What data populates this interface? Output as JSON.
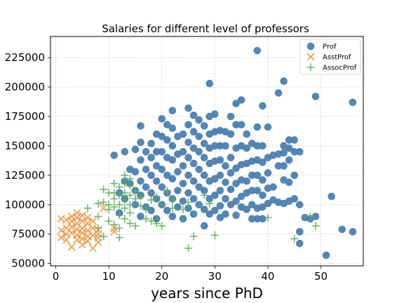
{
  "chart_data": {
    "type": "scatter",
    "title": "Salaries for different level of professors",
    "xlabel": "years since PhD",
    "ylabel": "",
    "xlim": [
      -1,
      58
    ],
    "ylim": [
      48000,
      243000
    ],
    "xticks": [
      0,
      10,
      20,
      30,
      40,
      50
    ],
    "yticks": [
      50000,
      75000,
      100000,
      125000,
      150000,
      175000,
      200000,
      225000
    ],
    "grid": true,
    "legend_position": "top-right",
    "series": [
      {
        "name": "Prof",
        "marker": "circle",
        "color": "#4a7fb0",
        "points": [
          [
            11,
            142000
          ],
          [
            12,
            93000
          ],
          [
            12,
            110000
          ],
          [
            13,
            145000
          ],
          [
            13,
            120000
          ],
          [
            13,
            105000
          ],
          [
            14,
            130000
          ],
          [
            14,
            118000
          ],
          [
            15,
            147000
          ],
          [
            15,
            128000
          ],
          [
            15,
            112000
          ],
          [
            15,
            100000
          ],
          [
            16,
            167000
          ],
          [
            16,
            153000
          ],
          [
            16,
            138000
          ],
          [
            16,
            120000
          ],
          [
            16,
            108000
          ],
          [
            16,
            90000
          ],
          [
            17,
            145000
          ],
          [
            17,
            130000
          ],
          [
            17,
            115000
          ],
          [
            17,
            98000
          ],
          [
            18,
            152000
          ],
          [
            18,
            140000
          ],
          [
            18,
            125000
          ],
          [
            18,
            110000
          ],
          [
            18,
            95000
          ],
          [
            19,
            160000
          ],
          [
            19,
            145000
          ],
          [
            19,
            133000
          ],
          [
            19,
            120000
          ],
          [
            19,
            105000
          ],
          [
            19,
            88000
          ],
          [
            20,
            173000
          ],
          [
            20,
            158000
          ],
          [
            20,
            145000
          ],
          [
            20,
            130000
          ],
          [
            20,
            115000
          ],
          [
            20,
            100000
          ],
          [
            21,
            168000
          ],
          [
            21,
            155000
          ],
          [
            21,
            140000
          ],
          [
            21,
            125000
          ],
          [
            21,
            110000
          ],
          [
            21,
            95000
          ],
          [
            22,
            180000
          ],
          [
            22,
            165000
          ],
          [
            22,
            150000
          ],
          [
            22,
            138000
          ],
          [
            22,
            122000
          ],
          [
            22,
            105000
          ],
          [
            22,
            90000
          ],
          [
            23,
            158000
          ],
          [
            23,
            143000
          ],
          [
            23,
            128000
          ],
          [
            23,
            112000
          ],
          [
            23,
            98000
          ],
          [
            24,
            160000
          ],
          [
            24,
            145000
          ],
          [
            24,
            133000
          ],
          [
            24,
            118000
          ],
          [
            24,
            103000
          ],
          [
            24,
            88000
          ],
          [
            25,
            182000
          ],
          [
            25,
            168000
          ],
          [
            25,
            153000
          ],
          [
            25,
            140000
          ],
          [
            25,
            125000
          ],
          [
            25,
            110000
          ],
          [
            25,
            97000
          ],
          [
            26,
            176000
          ],
          [
            26,
            162000
          ],
          [
            26,
            148000
          ],
          [
            26,
            135000
          ],
          [
            26,
            120000
          ],
          [
            26,
            105000
          ],
          [
            26,
            92000
          ],
          [
            27,
            172000
          ],
          [
            27,
            158000
          ],
          [
            27,
            145000
          ],
          [
            27,
            130000
          ],
          [
            27,
            115000
          ],
          [
            27,
            100000
          ],
          [
            28,
            167000
          ],
          [
            28,
            152000
          ],
          [
            28,
            140000
          ],
          [
            28,
            125000
          ],
          [
            28,
            112000
          ],
          [
            28,
            96000
          ],
          [
            28,
            82000
          ],
          [
            29,
            203000
          ],
          [
            29,
            175000
          ],
          [
            29,
            160000
          ],
          [
            29,
            148000
          ],
          [
            29,
            135000
          ],
          [
            29,
            120000
          ],
          [
            29,
            105000
          ],
          [
            29,
            92000
          ],
          [
            30,
            177000
          ],
          [
            30,
            162000
          ],
          [
            30,
            150000
          ],
          [
            30,
            137000
          ],
          [
            30,
            122000
          ],
          [
            30,
            108000
          ],
          [
            30,
            95000
          ],
          [
            31,
            163000
          ],
          [
            31,
            150000
          ],
          [
            31,
            138000
          ],
          [
            31,
            125000
          ],
          [
            31,
            112000
          ],
          [
            31,
            99000
          ],
          [
            31,
            89000
          ],
          [
            32,
            162000
          ],
          [
            32,
            150000
          ],
          [
            32,
            133000
          ],
          [
            32,
            119000
          ],
          [
            32,
            105000
          ],
          [
            32,
            92000
          ],
          [
            33,
            175000
          ],
          [
            33,
            160000
          ],
          [
            33,
            140000
          ],
          [
            33,
            127000
          ],
          [
            33,
            113000
          ],
          [
            33,
            100000
          ],
          [
            34,
            186000
          ],
          [
            34,
            168000
          ],
          [
            34,
            148000
          ],
          [
            34,
            131000
          ],
          [
            34,
            118000
          ],
          [
            34,
            103000
          ],
          [
            34,
            91000
          ],
          [
            35,
            189000
          ],
          [
            35,
            168000
          ],
          [
            35,
            150000
          ],
          [
            35,
            134000
          ],
          [
            35,
            121000
          ],
          [
            35,
            107000
          ],
          [
            35,
            98000
          ],
          [
            36,
            160000
          ],
          [
            36,
            148000
          ],
          [
            36,
            135000
          ],
          [
            36,
            120000
          ],
          [
            36,
            110000
          ],
          [
            36,
            96000
          ],
          [
            37,
            152000
          ],
          [
            37,
            137000
          ],
          [
            37,
            125000
          ],
          [
            37,
            112000
          ],
          [
            37,
            100000
          ],
          [
            37,
            88000
          ],
          [
            38,
            231000
          ],
          [
            38,
            166000
          ],
          [
            38,
            150000
          ],
          [
            38,
            138000
          ],
          [
            38,
            125000
          ],
          [
            38,
            112000
          ],
          [
            38,
            97000
          ],
          [
            38,
            88000
          ],
          [
            39,
            184000
          ],
          [
            39,
            150000
          ],
          [
            39,
            136000
          ],
          [
            39,
            121000
          ],
          [
            39,
            108000
          ],
          [
            39,
            98000
          ],
          [
            39,
            88000
          ],
          [
            40,
            166000
          ],
          [
            40,
            140000
          ],
          [
            40,
            127000
          ],
          [
            40,
            114000
          ],
          [
            40,
            101000
          ],
          [
            41,
            142000
          ],
          [
            41,
            115000
          ],
          [
            41,
            104000
          ],
          [
            42,
            195000
          ],
          [
            42,
            143000
          ],
          [
            42,
            133000
          ],
          [
            42,
            102000
          ],
          [
            43,
            205000
          ],
          [
            43,
            150000
          ],
          [
            43,
            144000
          ],
          [
            43,
            133000
          ],
          [
            43,
            121000
          ],
          [
            43,
            101000
          ],
          [
            44,
            155000
          ],
          [
            44,
            148000
          ],
          [
            44,
            138000
          ],
          [
            44,
            119000
          ],
          [
            44,
            103000
          ],
          [
            45,
            155000
          ],
          [
            45,
            145000
          ],
          [
            45,
            125000
          ],
          [
            45,
            105000
          ],
          [
            46,
            145000
          ],
          [
            46,
            100000
          ],
          [
            46,
            77000
          ],
          [
            46,
            67000
          ],
          [
            47,
            89000
          ],
          [
            48,
            88000
          ],
          [
            49,
            192000
          ],
          [
            49,
            90000
          ],
          [
            51,
            57000
          ],
          [
            52,
            107000
          ],
          [
            54,
            79000
          ],
          [
            56,
            187000
          ],
          [
            56,
            77000
          ]
        ]
      },
      {
        "name": "AsstProf",
        "marker": "x",
        "color": "#f08c30",
        "points": [
          [
            1,
            88000
          ],
          [
            1,
            78000
          ],
          [
            1,
            72000
          ],
          [
            2,
            87000
          ],
          [
            2,
            80000
          ],
          [
            2,
            75000
          ],
          [
            2,
            70000
          ],
          [
            3,
            90000
          ],
          [
            3,
            86000
          ],
          [
            3,
            81000
          ],
          [
            3,
            76000
          ],
          [
            3,
            64000
          ],
          [
            4,
            93000
          ],
          [
            4,
            89000
          ],
          [
            4,
            84000
          ],
          [
            4,
            79000
          ],
          [
            4,
            74000
          ],
          [
            4,
            70000
          ],
          [
            5,
            91000
          ],
          [
            5,
            86000
          ],
          [
            5,
            80000
          ],
          [
            5,
            76000
          ],
          [
            5,
            71000
          ],
          [
            5,
            66000
          ],
          [
            6,
            89000
          ],
          [
            6,
            84000
          ],
          [
            6,
            78000
          ],
          [
            6,
            73000
          ],
          [
            6,
            69000
          ],
          [
            7,
            86000
          ],
          [
            7,
            80000
          ],
          [
            7,
            74000
          ],
          [
            7,
            63000
          ],
          [
            8,
            79000
          ],
          [
            8,
            75000
          ],
          [
            8,
            72000
          ],
          [
            8,
            68000
          ],
          [
            9,
            97000
          ],
          [
            11,
            80000
          ],
          [
            11,
            77000
          ]
        ]
      },
      {
        "name": "AssocProf",
        "marker": "plus",
        "color": "#5aaa5a",
        "points": [
          [
            6,
            97000
          ],
          [
            8,
            101000
          ],
          [
            8,
            90000
          ],
          [
            8,
            80000
          ],
          [
            9,
            113000
          ],
          [
            9,
            102000
          ],
          [
            9,
            73000
          ],
          [
            10,
            110000
          ],
          [
            10,
            100000
          ],
          [
            10,
            96000
          ],
          [
            10,
            86000
          ],
          [
            11,
            118000
          ],
          [
            11,
            110000
          ],
          [
            11,
            105000
          ],
          [
            11,
            98000
          ],
          [
            11,
            83000
          ],
          [
            12,
            115000
          ],
          [
            12,
            108000
          ],
          [
            12,
            100000
          ],
          [
            12,
            91000
          ],
          [
            12,
            80000
          ],
          [
            12,
            72000
          ],
          [
            13,
            125000
          ],
          [
            13,
            118000
          ],
          [
            13,
            110000
          ],
          [
            13,
            104000
          ],
          [
            13,
            97000
          ],
          [
            13,
            88000
          ],
          [
            14,
            122000
          ],
          [
            14,
            116000
          ],
          [
            14,
            108000
          ],
          [
            14,
            100000
          ],
          [
            14,
            93000
          ],
          [
            14,
            84000
          ],
          [
            15,
            112000
          ],
          [
            15,
            105000
          ],
          [
            15,
            82000
          ],
          [
            16,
            107000
          ],
          [
            16,
            99000
          ],
          [
            17,
            96000
          ],
          [
            17,
            88000
          ],
          [
            18,
            104000
          ],
          [
            18,
            86000
          ],
          [
            19,
            107000
          ],
          [
            19,
            84000
          ],
          [
            20,
            100000
          ],
          [
            20,
            82000
          ],
          [
            21,
            112000
          ],
          [
            22,
            104000
          ],
          [
            22,
            97000
          ],
          [
            24,
            96000
          ],
          [
            25,
            102000
          ],
          [
            25,
            63000
          ],
          [
            26,
            73000
          ],
          [
            28,
            108000
          ],
          [
            29,
            101000
          ],
          [
            30,
            74000
          ],
          [
            40,
            89000
          ],
          [
            45,
            71000
          ],
          [
            48,
            90000
          ],
          [
            49,
            82000
          ]
        ]
      }
    ]
  }
}
